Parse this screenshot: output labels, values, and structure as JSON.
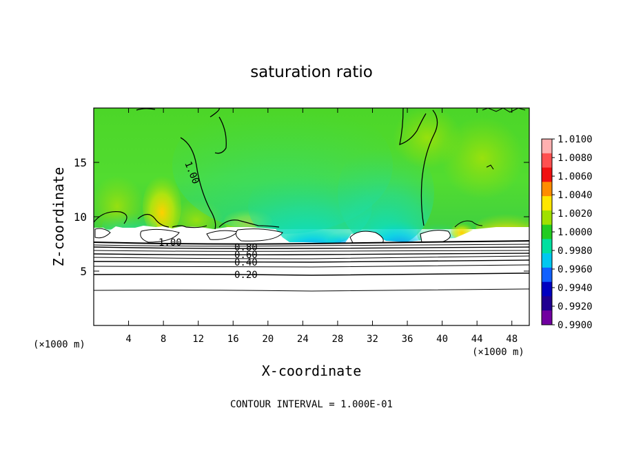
{
  "chart_data": {
    "type": "heatmap",
    "title": "saturation ratio",
    "xlabel": "X-coordinate",
    "ylabel": "Z-coordinate",
    "x_unit_left": "(×1000 m)",
    "x_unit_right": "(×1000 m)",
    "xlim": [
      0,
      50
    ],
    "ylim": [
      0,
      20
    ],
    "x_ticks": [
      "4",
      "8",
      "12",
      "16",
      "20",
      "24",
      "28",
      "32",
      "36",
      "40",
      "44",
      "48"
    ],
    "y_ticks": [
      "5",
      "10",
      "15"
    ],
    "colorbar": {
      "labels": [
        "1.0100",
        "1.0080",
        "1.0060",
        "1.0040",
        "1.0020",
        "1.0000",
        "0.9980",
        "0.9960",
        "0.9940",
        "0.9920",
        "0.9900"
      ],
      "colors": [
        "#ffb0b0",
        "#ff5050",
        "#f01010",
        "#ff8c00",
        "#ffe600",
        "#a0e000",
        "#22cc22",
        "#00e0a0",
        "#00c8f0",
        "#1060ff",
        "#0000c0",
        "#200090",
        "#7000a0"
      ]
    },
    "contour_labels": [
      "1.00",
      "1.00",
      "0.80",
      "0.60",
      "0.40",
      "0.20"
    ],
    "contour_levels_below_cloud": [
      0.2,
      0.3,
      0.4,
      0.5,
      0.6,
      0.7,
      0.8,
      0.9
    ],
    "footer": "CONTOUR INTERVAL = 1.000E-01"
  }
}
